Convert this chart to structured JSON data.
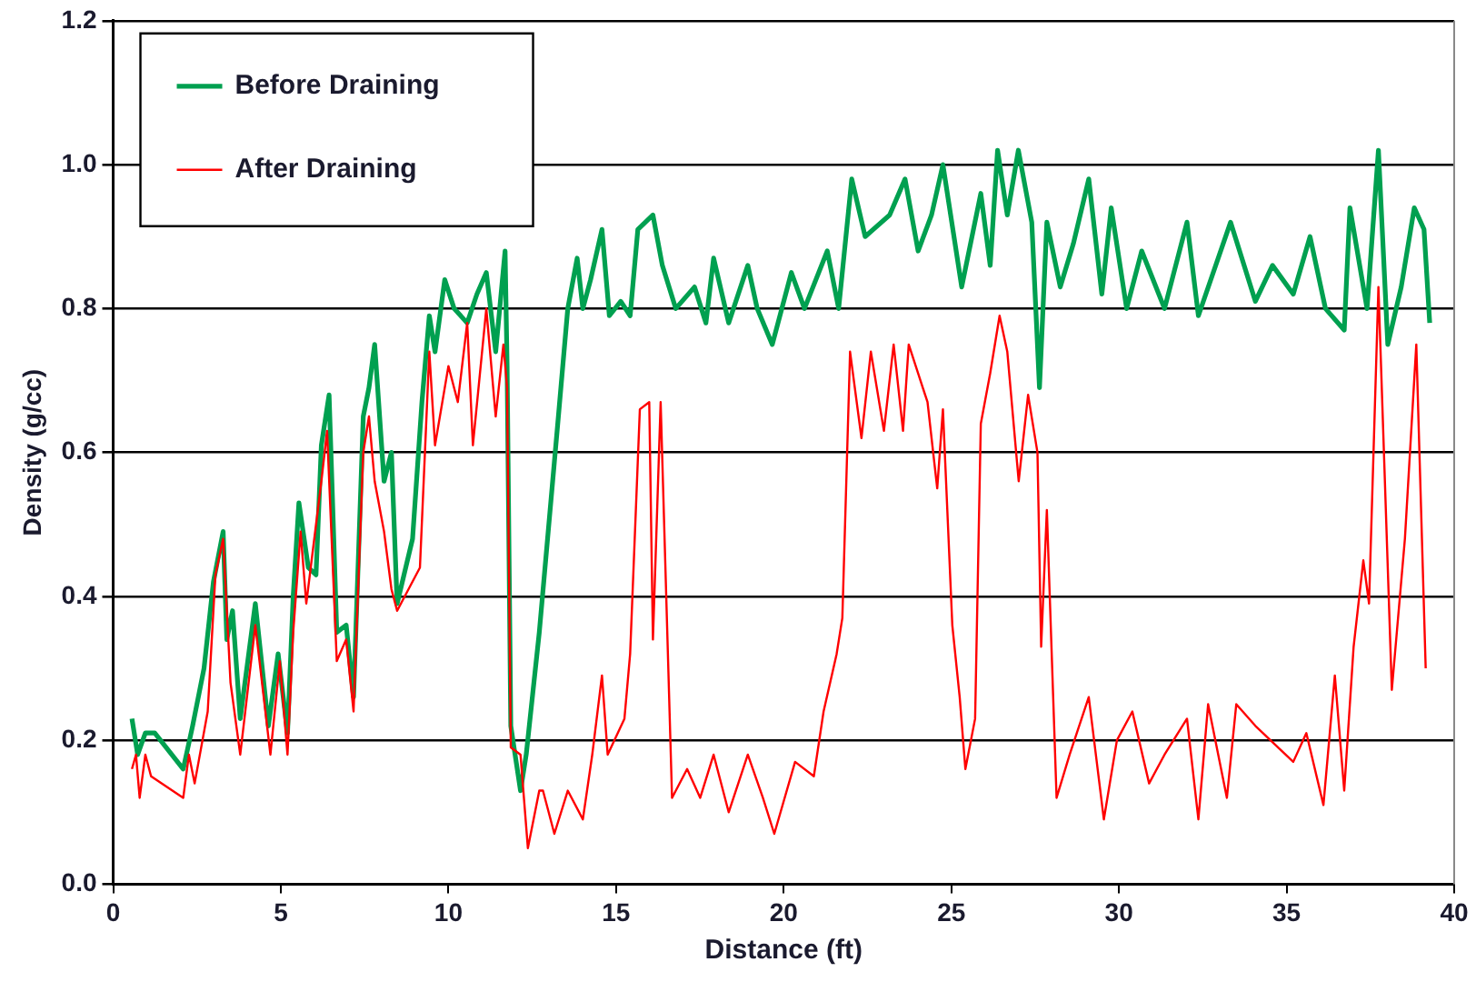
{
  "chart_data": {
    "type": "line",
    "xlabel": "Distance (ft)",
    "ylabel": "Density (g/cc)",
    "xlim": [
      0,
      40
    ],
    "xticks": [
      0,
      5,
      10,
      15,
      20,
      25,
      30,
      35,
      40
    ],
    "ylim": [
      0,
      1.2
    ],
    "yticks": [
      {
        "value": 0,
        "label": "0.0"
      },
      0.2,
      0.4,
      0.6,
      0.8,
      {
        "value": 1,
        "label": "1.0"
      },
      1.2
    ],
    "grid": "y",
    "legend": "top left",
    "marker": "none",
    "line_style": "solid",
    "series": [
      {
        "name": "Before Draining",
        "color": "#00a050",
        "x": [
          0.56,
          0.73,
          0.96,
          1.24,
          2.09,
          2.37,
          2.71,
          2.99,
          3.28,
          3.39,
          3.56,
          3.79,
          4.24,
          4.63,
          4.92,
          5.2,
          5.37,
          5.54,
          5.82,
          6.05,
          6.21,
          6.44,
          6.67,
          6.95,
          7.17,
          7.46,
          7.63,
          7.8,
          8.08,
          8.3,
          8.47,
          8.93,
          9.21,
          9.43,
          9.6,
          9.89,
          10.17,
          10.56,
          10.85,
          11.13,
          11.41,
          11.69,
          11.75,
          11.86,
          12.15,
          12.32,
          12.71,
          13.28,
          13.56,
          13.84,
          14.01,
          14.24,
          14.58,
          14.8,
          15.14,
          15.42,
          15.65,
          16.1,
          16.38,
          16.78,
          17.34,
          17.68,
          17.91,
          18.36,
          18.93,
          19.21,
          19.66,
          20.23,
          20.62,
          21.3,
          21.64,
          22.03,
          22.43,
          23.16,
          23.62,
          24.01,
          24.41,
          24.75,
          25.31,
          25.88,
          26.16,
          26.38,
          26.67,
          27.0,
          27.4,
          27.63,
          27.85,
          28.25,
          28.64,
          29.1,
          29.49,
          29.77,
          30.23,
          30.68,
          31.36,
          32.03,
          32.37,
          33.33,
          34.07,
          34.58,
          35.2,
          35.7,
          36.16,
          36.72,
          36.89,
          37.4,
          37.74,
          38.02,
          38.42,
          38.81,
          39.1,
          39.27
        ],
        "values": [
          0.23,
          0.18,
          0.21,
          0.21,
          0.16,
          0.22,
          0.3,
          0.42,
          0.49,
          0.34,
          0.38,
          0.23,
          0.39,
          0.22,
          0.32,
          0.21,
          0.4,
          0.53,
          0.44,
          0.43,
          0.61,
          0.68,
          0.35,
          0.36,
          0.26,
          0.65,
          0.69,
          0.75,
          0.56,
          0.6,
          0.39,
          0.48,
          0.67,
          0.79,
          0.74,
          0.84,
          0.8,
          0.78,
          0.82,
          0.85,
          0.74,
          0.88,
          0.72,
          0.22,
          0.13,
          0.18,
          0.35,
          0.65,
          0.8,
          0.87,
          0.8,
          0.84,
          0.91,
          0.79,
          0.81,
          0.79,
          0.91,
          0.93,
          0.86,
          0.8,
          0.83,
          0.78,
          0.87,
          0.78,
          0.86,
          0.8,
          0.75,
          0.85,
          0.8,
          0.88,
          0.8,
          0.98,
          0.9,
          0.93,
          0.98,
          0.88,
          0.93,
          1.0,
          0.83,
          0.96,
          0.86,
          1.02,
          0.93,
          1.02,
          0.92,
          0.69,
          0.92,
          0.83,
          0.89,
          0.98,
          0.82,
          0.94,
          0.8,
          0.88,
          0.8,
          0.92,
          0.79,
          0.92,
          0.81,
          0.86,
          0.82,
          0.9,
          0.8,
          0.77,
          0.94,
          0.8,
          1.02,
          0.75,
          0.83,
          0.94,
          0.91,
          0.78
        ]
      },
      {
        "name": "After Draining",
        "color": "#ff0000",
        "x": [
          0.56,
          0.68,
          0.79,
          0.96,
          1.13,
          2.09,
          2.26,
          2.43,
          2.82,
          3.05,
          3.28,
          3.5,
          3.79,
          4.24,
          4.69,
          4.97,
          5.2,
          5.37,
          5.59,
          5.76,
          6.21,
          6.38,
          6.67,
          6.95,
          7.17,
          7.46,
          7.63,
          7.8,
          8.08,
          8.3,
          8.47,
          9.15,
          9.43,
          9.6,
          10.0,
          10.28,
          10.56,
          10.73,
          11.13,
          11.41,
          11.64,
          11.75,
          11.86,
          12.15,
          12.37,
          12.71,
          12.82,
          13.16,
          13.56,
          14.01,
          14.29,
          14.58,
          14.75,
          15.25,
          15.42,
          15.71,
          15.99,
          16.1,
          16.33,
          16.67,
          17.12,
          17.51,
          17.91,
          18.36,
          18.93,
          19.38,
          19.72,
          20.34,
          20.9,
          21.19,
          21.58,
          21.75,
          21.98,
          22.32,
          22.6,
          22.99,
          23.28,
          23.56,
          23.73,
          24.29,
          24.58,
          24.75,
          25.03,
          25.25,
          25.42,
          25.71,
          25.88,
          26.16,
          26.44,
          26.67,
          27.01,
          27.29,
          27.57,
          27.68,
          27.85,
          28.14,
          28.53,
          29.1,
          29.55,
          29.94,
          30.4,
          30.9,
          31.36,
          32.03,
          32.37,
          32.66,
          33.22,
          33.5,
          34.07,
          35.2,
          35.59,
          36.1,
          36.44,
          36.72,
          37.0,
          37.29,
          37.46,
          37.74,
          38.14,
          38.53,
          38.87,
          39.15
        ],
        "values": [
          0.16,
          0.18,
          0.12,
          0.18,
          0.15,
          0.12,
          0.18,
          0.14,
          0.24,
          0.43,
          0.48,
          0.28,
          0.18,
          0.36,
          0.18,
          0.31,
          0.18,
          0.35,
          0.49,
          0.39,
          0.56,
          0.63,
          0.31,
          0.34,
          0.24,
          0.6,
          0.65,
          0.56,
          0.49,
          0.41,
          0.38,
          0.44,
          0.74,
          0.61,
          0.72,
          0.67,
          0.78,
          0.61,
          0.8,
          0.65,
          0.75,
          0.69,
          0.19,
          0.18,
          0.05,
          0.13,
          0.13,
          0.07,
          0.13,
          0.09,
          0.18,
          0.29,
          0.18,
          0.23,
          0.32,
          0.66,
          0.67,
          0.34,
          0.67,
          0.12,
          0.16,
          0.12,
          0.18,
          0.1,
          0.18,
          0.12,
          0.07,
          0.17,
          0.15,
          0.24,
          0.32,
          0.37,
          0.74,
          0.62,
          0.74,
          0.63,
          0.75,
          0.63,
          0.75,
          0.67,
          0.55,
          0.66,
          0.36,
          0.26,
          0.16,
          0.23,
          0.64,
          0.71,
          0.79,
          0.74,
          0.56,
          0.68,
          0.6,
          0.33,
          0.52,
          0.12,
          0.18,
          0.26,
          0.09,
          0.2,
          0.24,
          0.14,
          0.18,
          0.23,
          0.09,
          0.25,
          0.12,
          0.25,
          0.22,
          0.17,
          0.21,
          0.11,
          0.29,
          0.13,
          0.33,
          0.45,
          0.39,
          0.83,
          0.27,
          0.48,
          0.75,
          0.3
        ]
      }
    ]
  }
}
